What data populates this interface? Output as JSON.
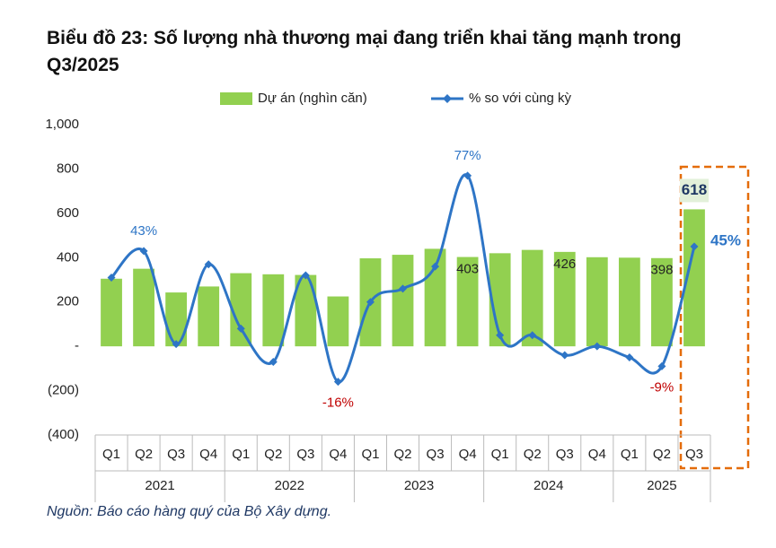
{
  "chart_data": {
    "type": "bar_line",
    "title": "Biểu đồ 23: Số lượng nhà thương mại đang triển khai tăng mạnh trong Q3/2025",
    "categories": [
      "Q1",
      "Q2",
      "Q3",
      "Q4",
      "Q1",
      "Q2",
      "Q3",
      "Q4",
      "Q1",
      "Q2",
      "Q3",
      "Q4",
      "Q1",
      "Q2",
      "Q3",
      "Q4",
      "Q1",
      "Q2",
      "Q3"
    ],
    "year_groups": [
      {
        "label": "2021",
        "count": 4
      },
      {
        "label": "2022",
        "count": 4
      },
      {
        "label": "2023",
        "count": 4
      },
      {
        "label": "2024",
        "count": 4
      },
      {
        "label": "2025",
        "count": 3
      }
    ],
    "series": [
      {
        "name": "Dự án (nghìn căn)",
        "type": "bar",
        "color": "#92d050",
        "values": [
          305,
          350,
          243,
          270,
          330,
          325,
          322,
          225,
          397,
          413,
          440,
          403,
          420,
          435,
          426,
          402,
          400,
          398,
          618
        ],
        "value_labels": [
          null,
          null,
          null,
          null,
          null,
          null,
          null,
          null,
          null,
          null,
          null,
          "403",
          null,
          null,
          "426",
          null,
          null,
          "398",
          "618"
        ]
      },
      {
        "name": "% so với cùng kỳ",
        "type": "line",
        "axis": "y2",
        "color": "#2e75c6",
        "values": [
          31,
          43,
          1,
          37,
          8,
          -7,
          32,
          -16,
          20,
          26,
          36,
          77,
          5,
          5,
          -4,
          0,
          -5,
          -9,
          45
        ],
        "value_labels": [
          null,
          "43%",
          null,
          null,
          null,
          null,
          null,
          "-16%",
          null,
          null,
          null,
          "77%",
          null,
          null,
          null,
          null,
          null,
          "-9%",
          "45%"
        ]
      }
    ],
    "ylim": [
      -400,
      1000
    ],
    "yticks": [
      {
        "value": -400,
        "label": "(400)"
      },
      {
        "value": -200,
        "label": "(200)"
      },
      {
        "value": 0,
        "label": "-"
      },
      200,
      400,
      600,
      800,
      {
        "value": 1000,
        "label": "1,000"
      }
    ],
    "y2lim": [
      -40,
      100
    ],
    "source": "Nguồn: Báo cáo hàng quý của Bộ Xây dựng."
  }
}
